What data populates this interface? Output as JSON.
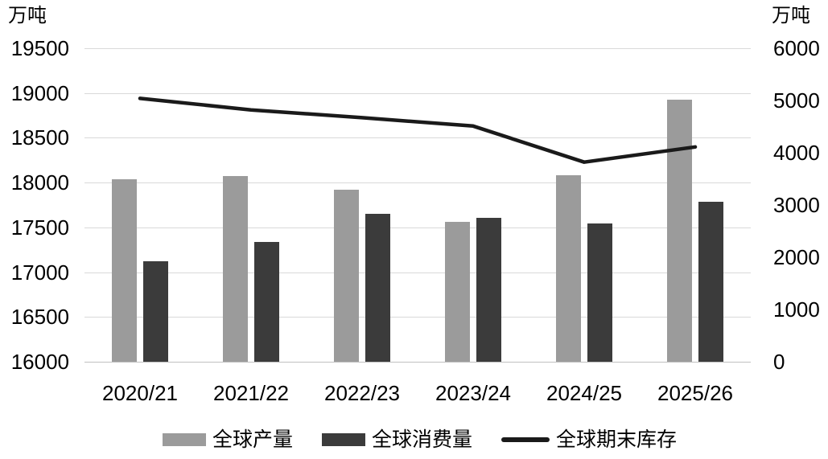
{
  "chart_data": {
    "type": "bar",
    "subtype": "dual-axis combo: grouped bars + line",
    "title": "",
    "categories": [
      "2020/21",
      "2021/22",
      "2022/23",
      "2023/24",
      "2024/25",
      "2025/26"
    ],
    "series": [
      {
        "name": "全球产量",
        "type": "bar",
        "axis": "left",
        "color": "#9B9B9B",
        "values": [
          18040,
          18070,
          17920,
          17560,
          18080,
          18930
        ]
      },
      {
        "name": "全球消费量",
        "type": "bar",
        "axis": "left",
        "color": "#3B3B3B",
        "values": [
          17120,
          17340,
          17650,
          17610,
          17540,
          17790
        ]
      },
      {
        "name": "全球期末库存",
        "type": "line",
        "axis": "right",
        "color": "#1A1A1A",
        "values": [
          5040,
          4820,
          4670,
          4510,
          3820,
          4110
        ]
      }
    ],
    "left_axis": {
      "title": "万吨",
      "min": 16000,
      "max": 19500,
      "step": 500,
      "tick_labels": [
        "19500",
        "19000",
        "18500",
        "18000",
        "17500",
        "17000",
        "16500",
        "16000"
      ]
    },
    "right_axis": {
      "title": "万吨",
      "min": 0,
      "max": 6000,
      "step": 1000,
      "tick_labels": [
        "6000",
        "5000",
        "4000",
        "3000",
        "2000",
        "1000",
        "0"
      ]
    },
    "grid": true,
    "gridline_color": "#D9D9D9",
    "baseline_color": "#C0C0C0",
    "text_color": "#000000",
    "background_color": "#FFFFFF",
    "legend_position": "bottom"
  }
}
